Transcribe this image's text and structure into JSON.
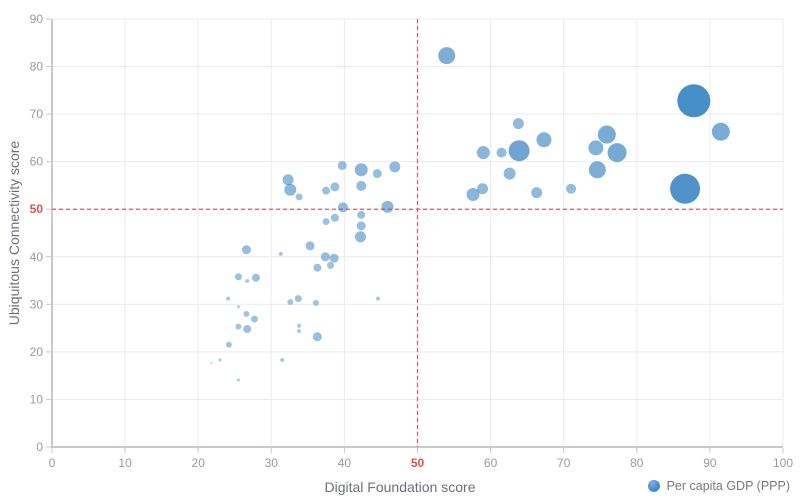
{
  "chart_data": {
    "type": "scatter",
    "title": "",
    "xlabel": "Digital Foundation score",
    "ylabel": "Ubiquitous Connectivity score",
    "legend": [
      {
        "label": "Per capita GDP (PPP)",
        "position": "bottom-right"
      }
    ],
    "xlim": [
      0,
      100
    ],
    "ylim": [
      0,
      90
    ],
    "x_ticks": [
      0,
      10,
      20,
      30,
      40,
      50,
      60,
      70,
      80,
      90,
      100
    ],
    "y_ticks": [
      0,
      10,
      20,
      30,
      40,
      50,
      60,
      70,
      80,
      90
    ],
    "grid": true,
    "reference_lines": [
      {
        "axis": "x",
        "value": 50,
        "style": "dashed"
      },
      {
        "axis": "y",
        "value": 50,
        "style": "dashed"
      }
    ],
    "highlighted_tick_value": 50,
    "point_columns": [
      "digital_foundation_score",
      "ubiquitous_connectivity_score",
      "bubble_radius_px"
    ],
    "series": [
      {
        "name": "Per capita GDP (PPP)",
        "points": [
          [
            54.0,
            82.3,
            8.5
          ],
          [
            87.8,
            72.8,
            16.5
          ],
          [
            91.5,
            66.3,
            9.0
          ],
          [
            63.8,
            68.0,
            5.5
          ],
          [
            67.3,
            64.6,
            7.5
          ],
          [
            75.9,
            65.7,
            9.0
          ],
          [
            74.4,
            62.9,
            7.5
          ],
          [
            77.3,
            61.9,
            9.5
          ],
          [
            63.9,
            62.3,
            10.5
          ],
          [
            61.5,
            61.9,
            5.0
          ],
          [
            59.0,
            61.9,
            6.5
          ],
          [
            62.6,
            57.5,
            6.0
          ],
          [
            74.6,
            58.3,
            8.5
          ],
          [
            86.6,
            54.3,
            15.0
          ],
          [
            71.0,
            54.3,
            5.0
          ],
          [
            66.3,
            53.5,
            5.5
          ],
          [
            58.9,
            54.3,
            5.5
          ],
          [
            57.6,
            53.1,
            6.5
          ],
          [
            32.3,
            56.2,
            5.5
          ],
          [
            32.6,
            54.1,
            6.0
          ],
          [
            33.8,
            52.6,
            3.5
          ],
          [
            37.5,
            53.9,
            4.0
          ],
          [
            38.7,
            54.7,
            4.5
          ],
          [
            39.7,
            59.2,
            4.5
          ],
          [
            42.3,
            58.3,
            6.5
          ],
          [
            44.5,
            57.5,
            4.5
          ],
          [
            46.9,
            58.9,
            5.5
          ],
          [
            42.3,
            54.9,
            5.0
          ],
          [
            39.8,
            50.4,
            5.0
          ],
          [
            45.9,
            50.5,
            6.0
          ],
          [
            42.3,
            48.8,
            4.0
          ],
          [
            38.7,
            48.2,
            4.0
          ],
          [
            37.5,
            47.4,
            3.5
          ],
          [
            42.3,
            46.5,
            4.5
          ],
          [
            42.2,
            44.2,
            5.5
          ],
          [
            35.3,
            42.3,
            4.5
          ],
          [
            26.6,
            41.5,
            4.5
          ],
          [
            31.3,
            40.6,
            2.0
          ],
          [
            37.4,
            40.0,
            4.5
          ],
          [
            38.6,
            39.7,
            4.5
          ],
          [
            36.3,
            37.7,
            4.0
          ],
          [
            38.1,
            38.2,
            3.5
          ],
          [
            25.5,
            35.8,
            3.5
          ],
          [
            27.9,
            35.6,
            4.0
          ],
          [
            26.7,
            34.9,
            2.0
          ],
          [
            24.1,
            31.2,
            2.0
          ],
          [
            32.6,
            30.5,
            3.0
          ],
          [
            33.7,
            31.2,
            3.5
          ],
          [
            36.1,
            30.3,
            3.0
          ],
          [
            44.6,
            31.2,
            2.0
          ],
          [
            25.5,
            29.5,
            1.5
          ],
          [
            26.6,
            28.0,
            3.0
          ],
          [
            27.7,
            26.9,
            3.5
          ],
          [
            25.5,
            25.3,
            3.0
          ],
          [
            26.7,
            24.8,
            4.0
          ],
          [
            33.8,
            25.5,
            2.0
          ],
          [
            33.8,
            24.4,
            2.0
          ],
          [
            36.3,
            23.2,
            4.5
          ],
          [
            24.2,
            21.5,
            3.0
          ],
          [
            23.0,
            18.3,
            1.5
          ],
          [
            21.8,
            17.7,
            1.0
          ],
          [
            31.5,
            18.3,
            2.0
          ],
          [
            25.5,
            14.1,
            1.5
          ]
        ]
      }
    ]
  },
  "colors": {
    "series_blue": "#2f7ec0",
    "reference_red": "#dd5a5a",
    "highlight_tick_red": "#d9534f",
    "tick_label_gray": "#999ba1",
    "axis_title_gray": "#6e7079",
    "grid_line": "#ececf0",
    "axis_line": "#c8c9cf",
    "background": "#ffffff"
  }
}
